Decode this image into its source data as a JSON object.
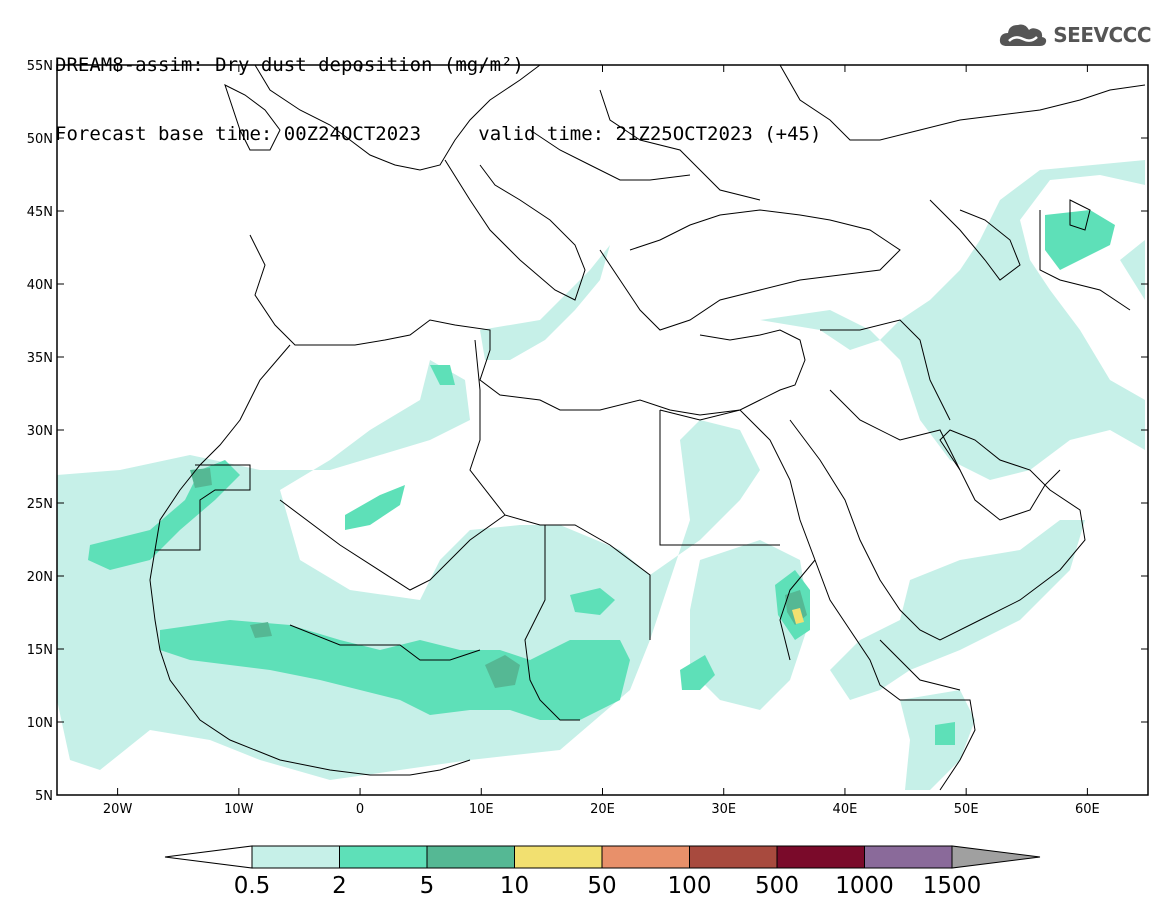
{
  "title": {
    "line1": "DREAM8-assim: Dry dust deposition (mg/m²)",
    "base_time": "Forecast base time: 00Z24OCT2023",
    "valid_time": "valid time: 21Z25OCT2023 (+45)"
  },
  "logo": {
    "text": "SEEVCCC",
    "icon": "cloud-icon"
  },
  "map": {
    "lon_range": [
      -25,
      65
    ],
    "lat_range": [
      5,
      55
    ],
    "lon_ticks": [
      "20W",
      "10W",
      "0",
      "10E",
      "20E",
      "30E",
      "40E",
      "50E",
      "60E"
    ],
    "lon_tick_values": [
      -20,
      -10,
      0,
      10,
      20,
      30,
      40,
      50,
      60
    ],
    "lat_ticks": [
      "5N",
      "10N",
      "15N",
      "20N",
      "25N",
      "30N",
      "35N",
      "40N",
      "45N",
      "50N",
      "55N"
    ],
    "lat_tick_values": [
      5,
      10,
      15,
      20,
      25,
      30,
      35,
      40,
      45,
      50,
      55
    ]
  },
  "colorbar": {
    "labels": [
      "0.5",
      "2",
      "5",
      "10",
      "50",
      "100",
      "500",
      "1000",
      "1500"
    ],
    "colors": [
      "#c6f0e8",
      "#5ee0b8",
      "#55b894",
      "#f2e070",
      "#e8906a",
      "#a84a3e",
      "#7a0a2a",
      "#8a6a9a"
    ],
    "left_arrow_color": "#ffffff",
    "right_arrow_color": "#a0a0a0"
  },
  "fill_colors": {
    "light": "#c6f0e8",
    "medium": "#5ee0b8",
    "dark": "#55b894",
    "yellow": "#f2e070"
  }
}
